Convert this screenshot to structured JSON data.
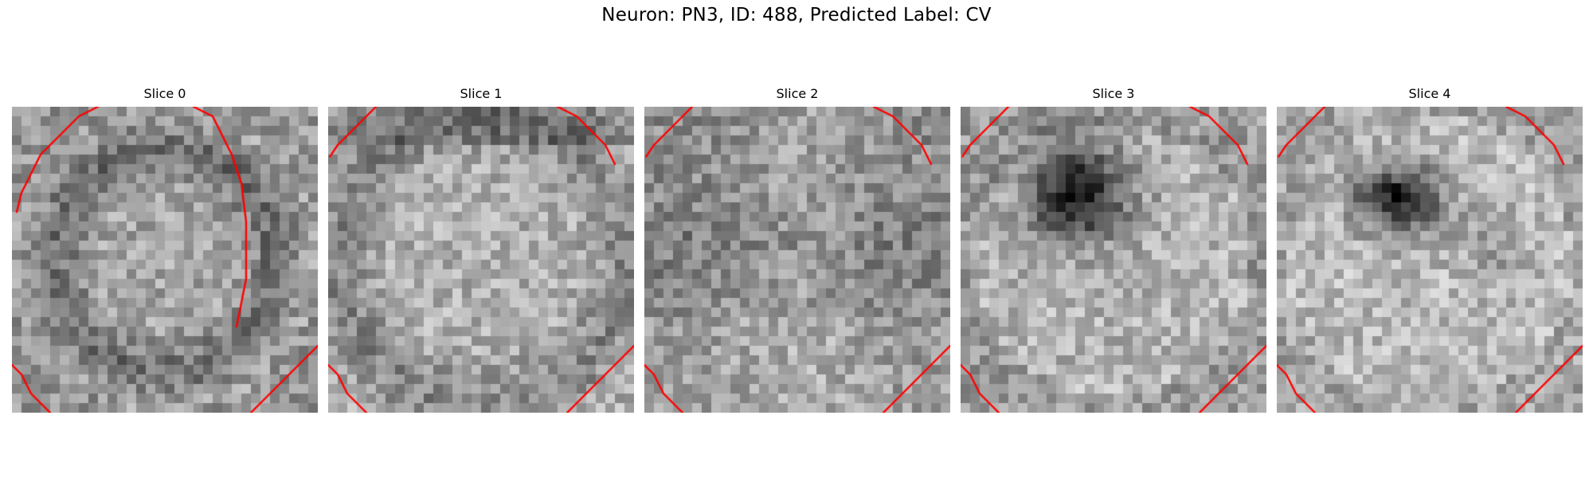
{
  "figure": {
    "title": "Neuron: PN3, ID: 488, Predicted Label: CV"
  },
  "slices": [
    {
      "title": "Slice 0",
      "pattern": "ring",
      "corner_marks": [
        "ring-left",
        "ring-right",
        "bottom-left",
        "bottom-right"
      ],
      "contour_color": "#ff0000"
    },
    {
      "title": "Slice 1",
      "pattern": "bright-center",
      "corner_marks": [
        "top-left",
        "top-right",
        "bottom-left",
        "bottom-right"
      ],
      "contour_color": "#ff0000"
    },
    {
      "title": "Slice 2",
      "pattern": "noisy",
      "corner_marks": [
        "top-left",
        "top-right",
        "bottom-left",
        "bottom-right"
      ],
      "contour_color": "#ff0000"
    },
    {
      "title": "Slice 3",
      "pattern": "dark-blob-large",
      "corner_marks": [
        "top-left",
        "top-right",
        "bottom-left",
        "bottom-right"
      ],
      "contour_color": "#ff0000"
    },
    {
      "title": "Slice 4",
      "pattern": "dark-blob-small",
      "corner_marks": [
        "top-left",
        "top-right",
        "bottom-left",
        "bottom-right"
      ],
      "contour_color": "#ff0000"
    }
  ]
}
